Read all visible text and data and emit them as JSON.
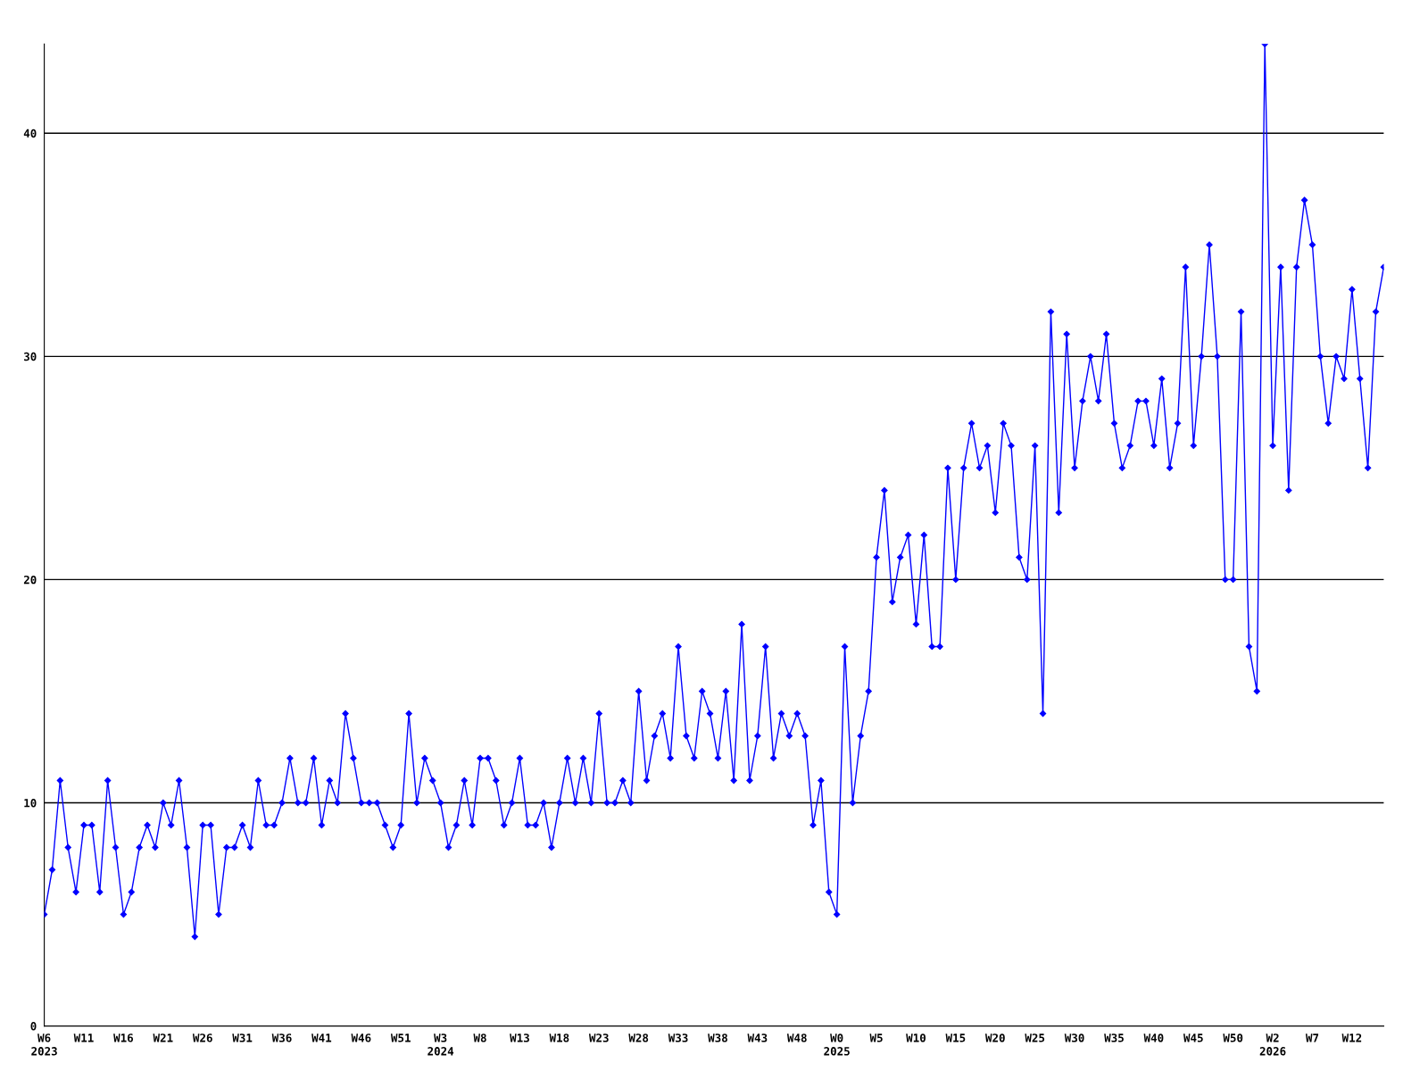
{
  "chart_data": {
    "type": "line",
    "categories": [
      "W6\n2023",
      null,
      null,
      null,
      null,
      "W11",
      null,
      null,
      null,
      null,
      "W16",
      null,
      null,
      null,
      null,
      "W21",
      null,
      null,
      null,
      null,
      "W26",
      null,
      null,
      null,
      null,
      "W31",
      null,
      null,
      null,
      null,
      "W36",
      null,
      null,
      null,
      null,
      "W41",
      null,
      null,
      null,
      null,
      "W46",
      null,
      null,
      null,
      null,
      "W51",
      null,
      null,
      null,
      null,
      "W3\n2024",
      null,
      null,
      null,
      null,
      "W8",
      null,
      null,
      null,
      null,
      "W13",
      null,
      null,
      null,
      null,
      "W18",
      null,
      null,
      null,
      null,
      "W23",
      null,
      null,
      null,
      null,
      "W28",
      null,
      null,
      null,
      null,
      "W33",
      null,
      null,
      null,
      null,
      "W38",
      null,
      null,
      null,
      null,
      "W43",
      null,
      null,
      null,
      null,
      "W48",
      null,
      null,
      null,
      null,
      "W0\n2025",
      null,
      null,
      null,
      null,
      "W5",
      null,
      null,
      null,
      null,
      "W10",
      null,
      null,
      null,
      null,
      "W15",
      null,
      null,
      null,
      null,
      "W20",
      null,
      null,
      null,
      null,
      "W25",
      null,
      null,
      null,
      null,
      "W30",
      null,
      null,
      null,
      null,
      "W35",
      null,
      null,
      null,
      null,
      "W40",
      null,
      null,
      null,
      null,
      "W45",
      null,
      null,
      null,
      null,
      "W50",
      null,
      null,
      null,
      null,
      "W2\n2026",
      null,
      null,
      null,
      null,
      "W7",
      null,
      null,
      null,
      null,
      "W12",
      null,
      null,
      null,
      null
    ],
    "series": [
      {
        "color": "#0000ff",
        "values": [
          5,
          7,
          11,
          8,
          6,
          9,
          9,
          6,
          11,
          8,
          5,
          6,
          8,
          9,
          8,
          10,
          9,
          11,
          8,
          4,
          9,
          9,
          5,
          8,
          8,
          9,
          8,
          11,
          9,
          9,
          10,
          12,
          10,
          10,
          12,
          9,
          11,
          10,
          14,
          12,
          10,
          10,
          10,
          9,
          8,
          9,
          14,
          10,
          12,
          11,
          10,
          8,
          9,
          11,
          9,
          12,
          12,
          11,
          9,
          10,
          12,
          9,
          9,
          10,
          8,
          10,
          12,
          10,
          12,
          10,
          14,
          10,
          10,
          11,
          10,
          15,
          11,
          13,
          14,
          12,
          17,
          13,
          12,
          15,
          14,
          12,
          15,
          11,
          18,
          11,
          13,
          17,
          12,
          14,
          13,
          14,
          13,
          9,
          11,
          6,
          5,
          17,
          10,
          13,
          15,
          21,
          24,
          19,
          21,
          22,
          18,
          22,
          17,
          17,
          25,
          20,
          25,
          27,
          25,
          26,
          23,
          27,
          26,
          21,
          20,
          26,
          14,
          32,
          23,
          31,
          25,
          28,
          30,
          28,
          31,
          27,
          25,
          26,
          28,
          28,
          26,
          29,
          25,
          27,
          34,
          26,
          30,
          35,
          30,
          20,
          20,
          32,
          17,
          15,
          44,
          26,
          34,
          24,
          34,
          37,
          35,
          30,
          27,
          30,
          29,
          33,
          29,
          25,
          32,
          34
        ]
      }
    ],
    "ylim": [
      0,
      44
    ],
    "yticks": [
      0,
      10,
      20,
      30,
      40
    ],
    "grid": "y",
    "marker": "diamond",
    "line_style": "solid"
  }
}
